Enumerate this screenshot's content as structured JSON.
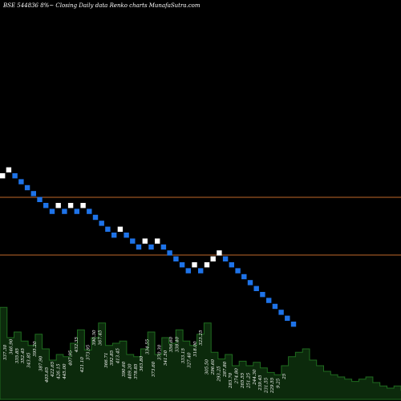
{
  "header": {
    "title": "BSE 544836  8%~  Closing Daily data  Renko  charts MunafaSutra.com"
  },
  "colors": {
    "background": "#000000",
    "up_brick": "#ffffff",
    "down_brick": "#1e73e8",
    "support_line": "#c0682a",
    "volume_fill": "#0c2a0c",
    "volume_stroke": "#1f6b1f",
    "label_text": "#ffffff"
  },
  "chart_data": {
    "type": "renko",
    "title": "BSE 544836  8%~  Closing Daily data  Renko  charts MunafaSutra.com",
    "brick_directions": [
      "U",
      "U",
      "D",
      "D",
      "D",
      "D",
      "D",
      "D",
      "D",
      "U",
      "D",
      "U",
      "D",
      "U",
      "D",
      "D",
      "D",
      "D",
      "D",
      "U",
      "D",
      "D",
      "D",
      "U",
      "D",
      "U",
      "D",
      "D",
      "D",
      "D",
      "D",
      "U",
      "D",
      "U",
      "U",
      "U",
      "D",
      "D",
      "D",
      "D",
      "D",
      "D",
      "D",
      "D",
      "D",
      "D",
      "D",
      "D"
    ],
    "reference_lines": [
      "upper",
      "lower"
    ],
    "volume_labels": [
      "337.30",
      "346.90",
      "335.85",
      "352.45",
      "343.85",
      "395.20",
      "387.90",
      "403.65",
      "422.65",
      "426.15",
      "445.00",
      "407.95",
      "432.35",
      "421.10",
      "373.95",
      "390.30",
      "367.45",
      "366.71",
      "392.85",
      "413.45",
      "390.60",
      "409.20",
      "378.85",
      "363.80",
      "334.55",
      "373.60",
      "370.30",
      "341.50",
      "356.60",
      "338.40",
      "333.15",
      "327.40",
      "318.00",
      "323.25",
      "305.50",
      "296.60",
      "293.25",
      "287.80",
      "283.70",
      "274.80",
      "265.55",
      "251.25",
      "244.30",
      "239.45",
      "231.55",
      "229.55",
      "9.25",
      "25"
    ],
    "volume_profile": [
      0.82,
      0.55,
      0.6,
      0.52,
      0.48,
      0.58,
      0.45,
      0.35,
      0.4,
      0.38,
      0.5,
      0.62,
      0.44,
      0.55,
      0.68,
      0.48,
      0.5,
      0.52,
      0.4,
      0.38,
      0.45,
      0.6,
      0.4,
      0.55,
      0.5,
      0.62,
      0.52,
      0.48,
      0.58,
      0.68,
      0.42,
      0.36,
      0.4,
      0.3,
      0.34,
      0.3,
      0.33,
      0.28,
      0.24,
      0.22,
      0.3,
      0.38,
      0.42,
      0.45,
      0.35,
      0.3,
      0.25,
      0.22,
      0.2,
      0.18,
      0.16,
      0.18,
      0.2,
      0.15,
      0.12,
      0.1,
      0.12,
      0.08
    ]
  }
}
